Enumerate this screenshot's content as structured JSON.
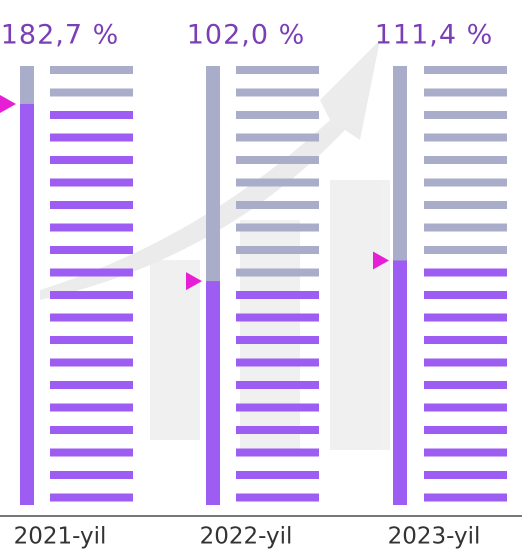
{
  "chart_data": {
    "type": "gauge",
    "categories": [
      "2021-yil",
      "2022-yil",
      "2023-yil"
    ],
    "values": [
      182.7,
      102.0,
      111.4
    ],
    "value_labels": [
      "182,7 %",
      "102,0 %",
      "111,4 %"
    ],
    "ylim": [
      0,
      200
    ],
    "color": "#9d5cf2",
    "empty_color": "#a9adc9",
    "marker_color": "#e61fd6"
  }
}
